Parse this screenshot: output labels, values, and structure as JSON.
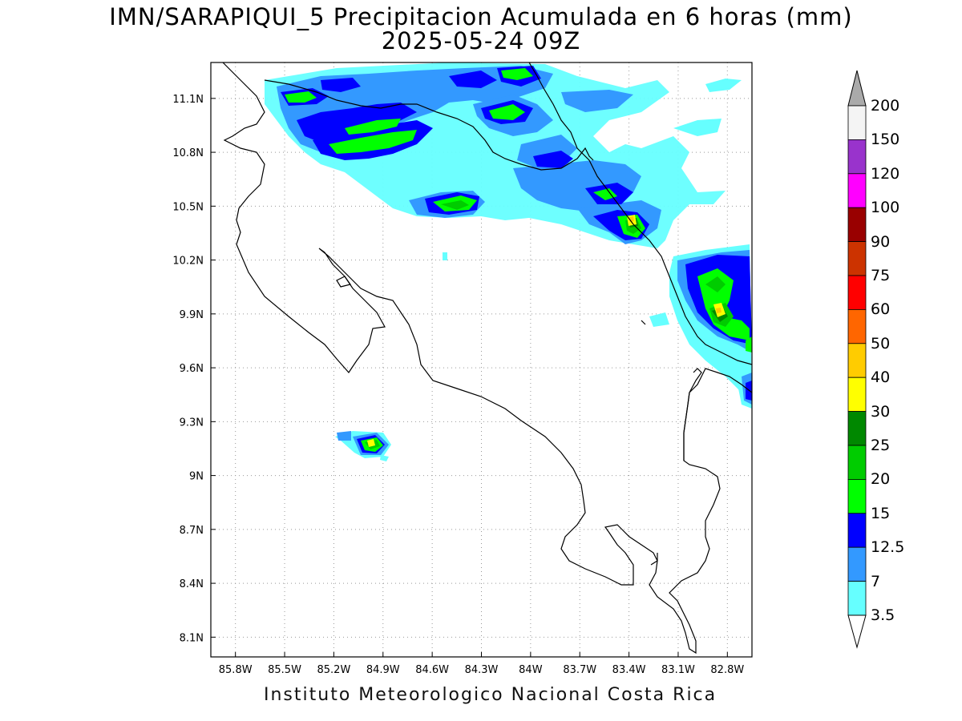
{
  "header": {
    "title_line1": "IMN/SARAPIQUI_5 Precipitacion Acumulada en 6 horas (mm)",
    "title_line2": "2025-05-24 09Z"
  },
  "footer": {
    "credit": "Instituto Meteorologico Nacional Costa Rica"
  },
  "map": {
    "lon_ticks": [
      "85.8W",
      "85.5W",
      "85.2W",
      "84.9W",
      "84.6W",
      "84.3W",
      "84W",
      "83.7W",
      "83.4W",
      "83.1W",
      "82.8W"
    ],
    "lat_ticks": [
      "11.1N",
      "10.8N",
      "10.5N",
      "10.2N",
      "9.9N",
      "9.6N",
      "9.3N",
      "9N",
      "8.7N",
      "8.4N",
      "8.1N"
    ],
    "lon_range": [
      -85.95,
      -82.65
    ],
    "lat_range": [
      7.99,
      11.3
    ]
  },
  "colorbar": {
    "labels": [
      "200",
      "150",
      "120",
      "100",
      "90",
      "75",
      "60",
      "50",
      "40",
      "30",
      "25",
      "20",
      "15",
      "12.5",
      "7",
      "3.5"
    ],
    "colors": [
      "#f4f4f4",
      "#9933cc",
      "#ff00ff",
      "#990000",
      "#cc3300",
      "#ff0000",
      "#ff6600",
      "#ffcc00",
      "#ffff00",
      "#008800",
      "#00cc00",
      "#00ff00",
      "#0000ff",
      "#3399ff",
      "#66ffff"
    ],
    "top_arrow_color": "#aaaaaa",
    "bottom_arrow_color": "#ffffff"
  }
}
